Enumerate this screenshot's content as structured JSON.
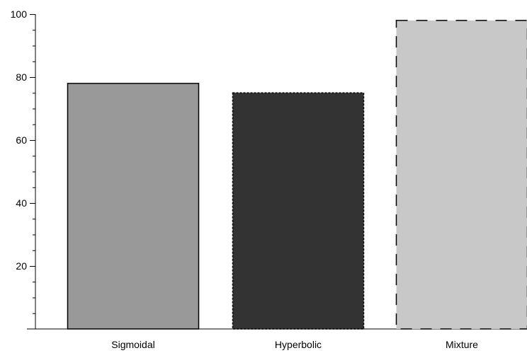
{
  "chart_data": {
    "type": "bar",
    "title": "",
    "xlabel": "",
    "ylabel": "",
    "ylim": [
      0,
      100
    ],
    "yticks": [
      20,
      40,
      60,
      80,
      100
    ],
    "grid": false,
    "categories": [
      "Sigmoidal",
      "Hyperbolic",
      "Mixture"
    ],
    "values": [
      78,
      75,
      98
    ],
    "bar_styles": [
      {
        "fill": "#999999",
        "stroke": "#000000",
        "border": "solid"
      },
      {
        "fill": "#333333",
        "stroke": "#000000",
        "border": "dotted"
      },
      {
        "fill": "#c8c8c8",
        "stroke": "#000000",
        "border": "dashed"
      }
    ]
  }
}
